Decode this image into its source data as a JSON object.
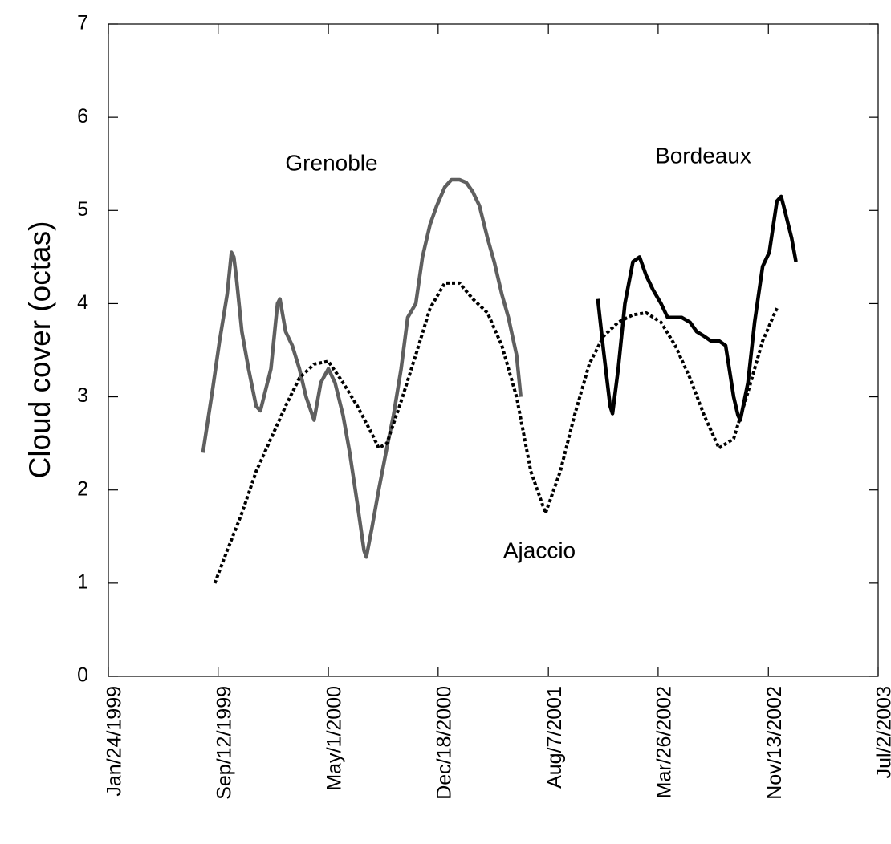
{
  "chart_data": {
    "type": "line",
    "ylabel": "Cloud cover (octas)",
    "xlim": [
      "1999-01-24",
      "2003-07-02"
    ],
    "xticks": [
      {
        "value": "1999-01-24",
        "label": "Jan/24/1999"
      },
      {
        "value": "1999-09-12",
        "label": "Sep/12/1999"
      },
      {
        "value": "2000-05-01",
        "label": "May/1/2000"
      },
      {
        "value": "2000-12-18",
        "label": "Dec/18/2000"
      },
      {
        "value": "2001-08-07",
        "label": "Aug/7/2001"
      },
      {
        "value": "2002-03-26",
        "label": "Mar/26/2002"
      },
      {
        "value": "2002-11-13",
        "label": "Nov/13/2002"
      },
      {
        "value": "2003-07-02",
        "label": "Jul/2/2003"
      }
    ],
    "ylim": [
      0,
      7
    ],
    "yticks": [
      0,
      1,
      2,
      3,
      4,
      5,
      6,
      7
    ],
    "series": [
      {
        "name": "Grenoble",
        "color": "#5f5f5f",
        "dash": false,
        "x": [
          "1999-08-11",
          "1999-09-01",
          "1999-09-15",
          "1999-10-01",
          "1999-10-10",
          "1999-10-15",
          "1999-10-20",
          "1999-11-01",
          "1999-11-15",
          "1999-12-01",
          "1999-12-10",
          "2000-01-01",
          "2000-01-15",
          "2000-01-20",
          "2000-02-01",
          "2000-02-15",
          "2000-03-01",
          "2000-03-15",
          "2000-04-01",
          "2000-04-15",
          "2000-05-01",
          "2000-05-15",
          "2000-06-01",
          "2000-06-15",
          "2000-07-01",
          "2000-07-15",
          "2000-07-20",
          "2000-08-01",
          "2000-08-15",
          "2000-09-01",
          "2000-09-15",
          "2000-10-01",
          "2000-10-15",
          "2000-11-01",
          "2000-11-15",
          "2000-12-01",
          "2000-12-15",
          "2001-01-01",
          "2001-01-15",
          "2001-02-01",
          "2001-02-15",
          "2001-03-01",
          "2001-03-15",
          "2001-04-01",
          "2001-04-15",
          "2001-05-01",
          "2001-05-15",
          "2001-06-01",
          "2001-06-10"
        ],
        "values": [
          2.4,
          3.1,
          3.6,
          4.1,
          4.55,
          4.5,
          4.3,
          3.7,
          3.3,
          2.9,
          2.85,
          3.3,
          4.0,
          4.05,
          3.7,
          3.55,
          3.3,
          3.0,
          2.75,
          3.15,
          3.3,
          3.15,
          2.8,
          2.4,
          1.85,
          1.35,
          1.28,
          1.6,
          2.0,
          2.45,
          2.8,
          3.3,
          3.85,
          4.0,
          4.5,
          4.85,
          5.05,
          5.25,
          5.33,
          5.33,
          5.3,
          5.2,
          5.05,
          4.7,
          4.45,
          4.1,
          3.85,
          3.45,
          3.0
        ]
      },
      {
        "name": "Ajaccio",
        "color": "#000000",
        "dash": true,
        "x": [
          "1999-09-05",
          "1999-10-01",
          "1999-11-01",
          "1999-12-01",
          "2000-01-01",
          "2000-02-01",
          "2000-03-01",
          "2000-04-01",
          "2000-05-01",
          "2000-06-01",
          "2000-07-01",
          "2000-08-01",
          "2000-08-15",
          "2000-09-01",
          "2000-10-01",
          "2000-11-01",
          "2000-12-01",
          "2001-01-01",
          "2001-02-01",
          "2001-03-01",
          "2001-04-01",
          "2001-05-01",
          "2001-06-01",
          "2001-07-01",
          "2001-08-01",
          "2001-09-01",
          "2001-10-01",
          "2001-11-01",
          "2001-12-01",
          "2002-01-01",
          "2002-02-01",
          "2002-03-01",
          "2002-04-01",
          "2002-05-01",
          "2002-06-01",
          "2002-07-01",
          "2002-08-01",
          "2002-09-01",
          "2002-10-01",
          "2002-11-01",
          "2002-12-01"
        ],
        "values": [
          1.0,
          1.35,
          1.75,
          2.2,
          2.55,
          2.9,
          3.2,
          3.35,
          3.38,
          3.15,
          2.9,
          2.6,
          2.45,
          2.5,
          2.95,
          3.45,
          3.95,
          4.22,
          4.22,
          4.05,
          3.9,
          3.55,
          3.0,
          2.2,
          1.75,
          2.2,
          2.8,
          3.35,
          3.65,
          3.8,
          3.88,
          3.9,
          3.8,
          3.55,
          3.2,
          2.8,
          2.45,
          2.55,
          3.05,
          3.6,
          3.95
        ]
      },
      {
        "name": "Bordeaux",
        "color": "#000000",
        "dash": false,
        "x": [
          "2001-11-19",
          "2001-12-01",
          "2001-12-15",
          "2001-12-20",
          "2002-01-01",
          "2002-01-15",
          "2002-02-01",
          "2002-02-15",
          "2002-03-01",
          "2002-03-15",
          "2002-04-01",
          "2002-04-15",
          "2002-05-01",
          "2002-05-15",
          "2002-06-01",
          "2002-06-15",
          "2002-07-01",
          "2002-07-15",
          "2002-08-01",
          "2002-08-15",
          "2002-09-01",
          "2002-09-10",
          "2002-09-15",
          "2002-10-01",
          "2002-10-15",
          "2002-11-01",
          "2002-11-15",
          "2002-12-01",
          "2002-12-10",
          "2002-12-15",
          "2003-01-01",
          "2003-01-10"
        ],
        "values": [
          4.05,
          3.5,
          2.9,
          2.82,
          3.3,
          4.0,
          4.45,
          4.5,
          4.3,
          4.15,
          4.0,
          3.85,
          3.85,
          3.85,
          3.8,
          3.7,
          3.65,
          3.6,
          3.6,
          3.55,
          3.0,
          2.8,
          2.75,
          3.15,
          3.8,
          4.4,
          4.55,
          5.1,
          5.15,
          5.05,
          4.7,
          4.45
        ]
      }
    ]
  }
}
